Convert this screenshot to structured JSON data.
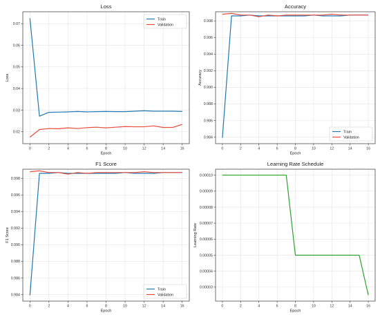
{
  "chart_data": [
    {
      "type": "line",
      "title": "Loss",
      "xlabel": "Epoch",
      "ylabel": "Loss",
      "x": [
        0,
        1,
        2,
        3,
        4,
        5,
        6,
        7,
        8,
        9,
        10,
        11,
        12,
        13,
        14,
        15,
        16
      ],
      "xlim": [
        -0.75,
        16.75
      ],
      "ylim": [
        0.0145,
        0.0755
      ],
      "xticks": [
        0,
        2,
        4,
        6,
        8,
        10,
        12,
        14,
        16
      ],
      "yticks": [
        0.02,
        0.03,
        0.04,
        0.05,
        0.06,
        0.07
      ],
      "yticklabels": [
        "0.02",
        "0.03",
        "0.04",
        "0.05",
        "0.06",
        "0.07"
      ],
      "grid": true,
      "legend": "upper right",
      "series": [
        {
          "name": "Train",
          "color": "#1f77b4",
          "values": [
            0.0725,
            0.0272,
            0.029,
            0.0291,
            0.0292,
            0.0294,
            0.0292,
            0.0293,
            0.0294,
            0.0293,
            0.0293,
            0.0295,
            0.0297,
            0.0295,
            0.0295,
            0.0295,
            0.0294
          ]
        },
        {
          "name": "Validation",
          "color": "#e74c3c",
          "values": [
            0.0175,
            0.021,
            0.0215,
            0.0214,
            0.0218,
            0.0215,
            0.0219,
            0.0221,
            0.0218,
            0.0221,
            0.0224,
            0.0223,
            0.0223,
            0.0227,
            0.022,
            0.022,
            0.0234
          ]
        }
      ]
    },
    {
      "type": "line",
      "title": "Accuracy",
      "xlabel": "Epoch",
      "ylabel": "Accuracy",
      "x": [
        0,
        1,
        2,
        3,
        4,
        5,
        6,
        7,
        8,
        9,
        10,
        11,
        12,
        13,
        14,
        15,
        16
      ],
      "xlim": [
        -0.75,
        16.75
      ],
      "ylim": [
        0.9832,
        0.9991
      ],
      "xticks": [
        0,
        2,
        4,
        6,
        8,
        10,
        12,
        14,
        16
      ],
      "yticks": [
        0.984,
        0.986,
        0.988,
        0.99,
        0.992,
        0.994,
        0.996,
        0.998
      ],
      "yticklabels": [
        "0.984",
        "0.986",
        "0.988",
        "0.990",
        "0.992",
        "0.994",
        "0.996",
        "0.998"
      ],
      "grid": true,
      "legend": "lower right",
      "series": [
        {
          "name": "Train",
          "color": "#1f77b4",
          "values": [
            0.9839,
            0.9986,
            0.9986,
            0.9987,
            0.9986,
            0.9986,
            0.9986,
            0.9986,
            0.9986,
            0.9986,
            0.9987,
            0.9986,
            0.9986,
            0.9986,
            0.9987,
            0.9987,
            0.9987
          ]
        },
        {
          "name": "Validation",
          "color": "#e74c3c",
          "values": [
            0.9988,
            0.9989,
            0.9987,
            0.9987,
            0.9985,
            0.9987,
            0.9986,
            0.9987,
            0.9987,
            0.9987,
            0.9987,
            0.9987,
            0.9988,
            0.9987,
            0.9987,
            0.9987,
            0.9987
          ]
        }
      ]
    },
    {
      "type": "line",
      "title": "F1 Score",
      "xlabel": "Epoch",
      "ylabel": "F1 Score",
      "x": [
        0,
        1,
        2,
        3,
        4,
        5,
        6,
        7,
        8,
        9,
        10,
        11,
        12,
        13,
        14,
        15,
        16
      ],
      "xlim": [
        -0.75,
        16.75
      ],
      "ylim": [
        0.9832,
        0.9991
      ],
      "xticks": [
        0,
        2,
        4,
        6,
        8,
        10,
        12,
        14,
        16
      ],
      "yticks": [
        0.984,
        0.986,
        0.988,
        0.99,
        0.992,
        0.994,
        0.996,
        0.998
      ],
      "yticklabels": [
        "0.984",
        "0.986",
        "0.988",
        "0.990",
        "0.992",
        "0.994",
        "0.996",
        "0.998"
      ],
      "grid": true,
      "legend": "lower right",
      "series": [
        {
          "name": "Train",
          "color": "#1f77b4",
          "values": [
            0.9839,
            0.9986,
            0.9986,
            0.9987,
            0.9986,
            0.9986,
            0.9986,
            0.9986,
            0.9986,
            0.9986,
            0.9987,
            0.9986,
            0.9986,
            0.9986,
            0.9987,
            0.9987,
            0.9987
          ]
        },
        {
          "name": "Validation",
          "color": "#e74c3c",
          "values": [
            0.9988,
            0.9989,
            0.9987,
            0.9987,
            0.9985,
            0.9987,
            0.9986,
            0.9987,
            0.9987,
            0.9987,
            0.9987,
            0.9987,
            0.9988,
            0.9987,
            0.9987,
            0.9987,
            0.9987
          ]
        }
      ]
    },
    {
      "type": "line",
      "title": "Learning Rate Schedule",
      "xlabel": "Epoch",
      "ylabel": "Learning Rate",
      "x": [
        0,
        1,
        2,
        3,
        4,
        5,
        6,
        7,
        8,
        9,
        10,
        11,
        12,
        13,
        14,
        15,
        16
      ],
      "xlim": [
        -0.75,
        16.75
      ],
      "ylim": [
        2.13e-05,
        0.0001037
      ],
      "xticks": [
        0,
        2,
        4,
        6,
        8,
        10,
        12,
        14,
        16
      ],
      "yticks": [
        3e-05,
        4e-05,
        5e-05,
        6e-05,
        7e-05,
        8e-05,
        9e-05,
        0.0001
      ],
      "yticklabels": [
        "0.00003",
        "0.00004",
        "0.00005",
        "0.00006",
        "0.00007",
        "0.00008",
        "0.00009",
        "0.00010"
      ],
      "grid": true,
      "legend": "none",
      "series": [
        {
          "color": "#2ca02c",
          "values": [
            0.0001,
            0.0001,
            0.0001,
            0.0001,
            0.0001,
            0.0001,
            0.0001,
            0.0001,
            5e-05,
            5e-05,
            5e-05,
            5e-05,
            5e-05,
            5e-05,
            5e-05,
            5e-05,
            2.5e-05
          ]
        }
      ]
    }
  ]
}
